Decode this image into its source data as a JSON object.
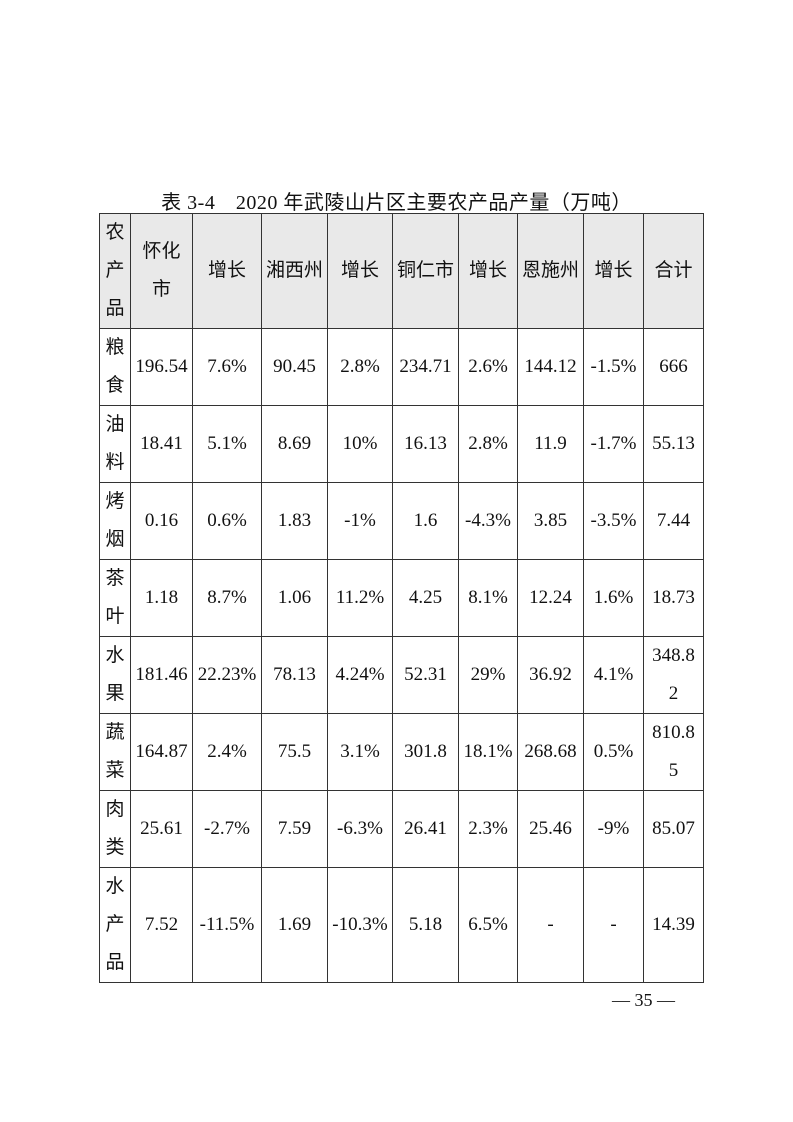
{
  "title": "表 3-4　2020 年武陵山片区主要农产品产量（万吨）",
  "table": {
    "headers": [
      "农产品",
      "怀化市",
      "增长",
      "湘西州",
      "增长",
      "铜仁市",
      "增长",
      "恩施州",
      "增长",
      "合计"
    ],
    "rows": [
      [
        "粮食",
        "196.54",
        "7.6%",
        "90.45",
        "2.8%",
        "234.71",
        "2.6%",
        "144.12",
        "-1.5%",
        "666"
      ],
      [
        "油料",
        "18.41",
        "5.1%",
        "8.69",
        "10%",
        "16.13",
        "2.8%",
        "11.9",
        "-1.7%",
        "55.13"
      ],
      [
        "烤烟",
        "0.16",
        "0.6%",
        "1.83",
        "-1%",
        "1.6",
        "-4.3%",
        "3.85",
        "-3.5%",
        "7.44"
      ],
      [
        "茶叶",
        "1.18",
        "8.7%",
        "1.06",
        "11.2%",
        "4.25",
        "8.1%",
        "12.24",
        "1.6%",
        "18.73"
      ],
      [
        "水果",
        "181.46",
        "22.23%",
        "78.13",
        "4.24%",
        "52.31",
        "29%",
        "36.92",
        "4.1%",
        "348.82"
      ],
      [
        "蔬菜",
        "164.87",
        "2.4%",
        "75.5",
        "3.1%",
        "301.8",
        "18.1%",
        "268.68",
        "0.5%",
        "810.85"
      ],
      [
        "肉类",
        "25.61",
        "-2.7%",
        "7.59",
        "-6.3%",
        "26.41",
        "2.3%",
        "25.46",
        "-9%",
        "85.07"
      ],
      [
        "水产品",
        "7.52",
        "-11.5%",
        "1.69",
        "-10.3%",
        "5.18",
        "6.5%",
        "-",
        "-",
        "14.39"
      ]
    ]
  },
  "page_number": "— 35 —"
}
